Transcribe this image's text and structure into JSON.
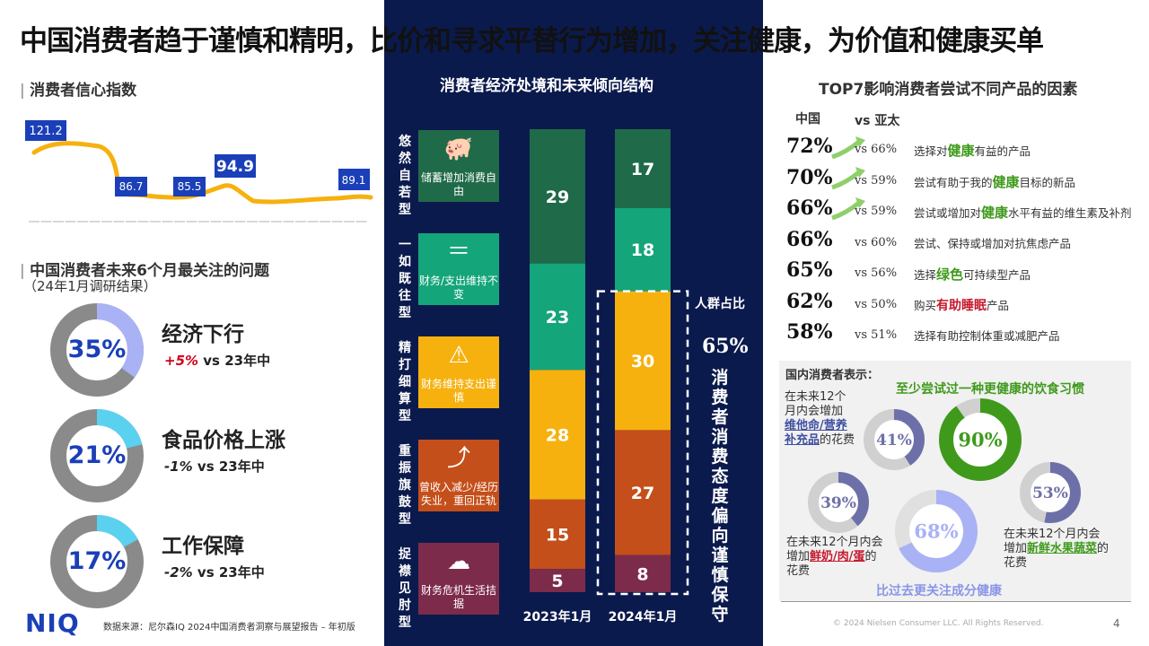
{
  "title": "中国消费者趋于谨慎和精明，比价和寻求平替行为增加，关注健康，为价值和健康买单",
  "confidence": {
    "section_title": "消费者信心指数",
    "callouts": [
      "121.2",
      "86.7",
      "85.5",
      "94.9",
      "89.1"
    ]
  },
  "issues": {
    "section_title": "中国消费者未来6个月最关注的问题",
    "subtitle": "（24年1月调研结果）",
    "items": [
      {
        "pct_label": "35%",
        "pct": 35,
        "name": "经济下行",
        "delta": "+5%",
        "vs": " vs 23年中",
        "color": "#a9b2f5"
      },
      {
        "pct_label": "21%",
        "pct": 21,
        "name": "食品价格上涨",
        "delta": "-1%",
        "vs": " vs 23年中",
        "color": "#5bd1f0"
      },
      {
        "pct_label": "17%",
        "pct": 17,
        "name": "工作保障",
        "delta": "-2%",
        "vs": " vs 23年中",
        "color": "#5bd1f0"
      }
    ]
  },
  "structure": {
    "title": "消费者经济处境和未来倾向结构",
    "categories": [
      {
        "vert": "悠然自若型",
        "card": "储蓄增加消费自由",
        "icon": "piggy-bank-icon",
        "color": "#1f6a48"
      },
      {
        "vert": "一如既往型",
        "card": "财务/支出维持不变",
        "icon": "equals-icon",
        "color": "#14a57a"
      },
      {
        "vert": "精打细算型",
        "card": "财务维持支出谨慎",
        "icon": "warning-icon",
        "color": "#f6b10f"
      },
      {
        "vert": "重振旗鼓型",
        "card": "曾收入减少/经历失业，重回正轨",
        "icon": "rebound-arrow-icon",
        "color": "#c44f1a"
      },
      {
        "vert": "捉襟见肘型",
        "card": "财务危机生活拮据",
        "icon": "storm-cloud-icon",
        "color": "#7d2b4a"
      }
    ],
    "chart_data": {
      "type": "bar",
      "stacked": true,
      "categories": [
        "2023年1月",
        "2024年1月"
      ],
      "series": [
        {
          "name": "悠然自若型",
          "values": [
            29,
            17
          ]
        },
        {
          "name": "一如既往型",
          "values": [
            23,
            18
          ]
        },
        {
          "name": "精打细算型",
          "values": [
            28,
            30
          ]
        },
        {
          "name": "重振旗鼓型",
          "values": [
            15,
            27
          ]
        },
        {
          "name": "捉襟见肘型",
          "values": [
            5,
            8
          ]
        }
      ]
    },
    "share_label": "人群占比",
    "share_value": "65%",
    "vertical_note": "消费者消费态度偏向谨慎保守"
  },
  "factors": {
    "title": "TOP7影响消费者尝试不同产品的因素",
    "col_china": "中国",
    "col_vs": "vs 亚太",
    "rows": [
      {
        "pct": "72%",
        "vs": "vs 66%",
        "pre": "选择对",
        "hl": "健康",
        "post": "有益的产品",
        "hlc": "g"
      },
      {
        "pct": "70%",
        "vs": "vs 59%",
        "pre": "尝试有助于我的",
        "hl": "健康",
        "post": "目标的新品",
        "hlc": "g"
      },
      {
        "pct": "66%",
        "vs": "vs 59%",
        "pre": "尝试或增加对",
        "hl": "健康",
        "post": "水平有益的维生素及补剂",
        "hlc": "g"
      },
      {
        "pct": "66%",
        "vs": "vs 60%",
        "pre": "尝试、保持或增加对抗焦虑产品",
        "hl": "",
        "post": "",
        "hlc": "g"
      },
      {
        "pct": "65%",
        "vs": "vs 56%",
        "pre": "选择",
        "hl": "绿色",
        "post": "可持续型产品",
        "hlc": "g"
      },
      {
        "pct": "62%",
        "vs": "vs 50%",
        "pre": "购买",
        "hl": "有助睡眠",
        "post": "产品",
        "hlc": "r"
      },
      {
        "pct": "58%",
        "vs": "vs 51%",
        "pre": "选择有助控制体重或减肥产品",
        "hl": "",
        "post": "",
        "hlc": "g"
      }
    ]
  },
  "health": {
    "title": "国内消费者表示：",
    "habit_title": "至少尝试过一种更健康的饮食习惯",
    "d41": {
      "label": "41%",
      "pct": 41,
      "t1": "在未来12个",
      "t2": "月内会增加",
      "t3a": "维他命/营养",
      "t3b": "补充品",
      "t3c": "的花费"
    },
    "d90": {
      "label": "90%",
      "pct": 90
    },
    "d39": {
      "label": "39%",
      "pct": 39,
      "t1": "在未来12个月内会",
      "t2a": "增加",
      "t2b": "鲜奶/肉/蛋",
      "t2c": "的",
      "t3": "花费"
    },
    "d68": {
      "label": "68%",
      "pct": 68
    },
    "d53": {
      "label": "53%",
      "pct": 53,
      "t1": "在未来12个月内会",
      "t2a": "增加",
      "t2b": "新鲜水果蔬菜",
      "t2c": "的",
      "t3": "花费"
    },
    "footer": "比过去更关注成分健康"
  },
  "footer": {
    "logo": "NIQ",
    "source": "数据来源：尼尔森IQ 2024中国消费者洞察与展望报告 – 年初版",
    "copyright": "© 2024 Nielsen Consumer LLC. All Rights Reserved.",
    "page": "4"
  }
}
